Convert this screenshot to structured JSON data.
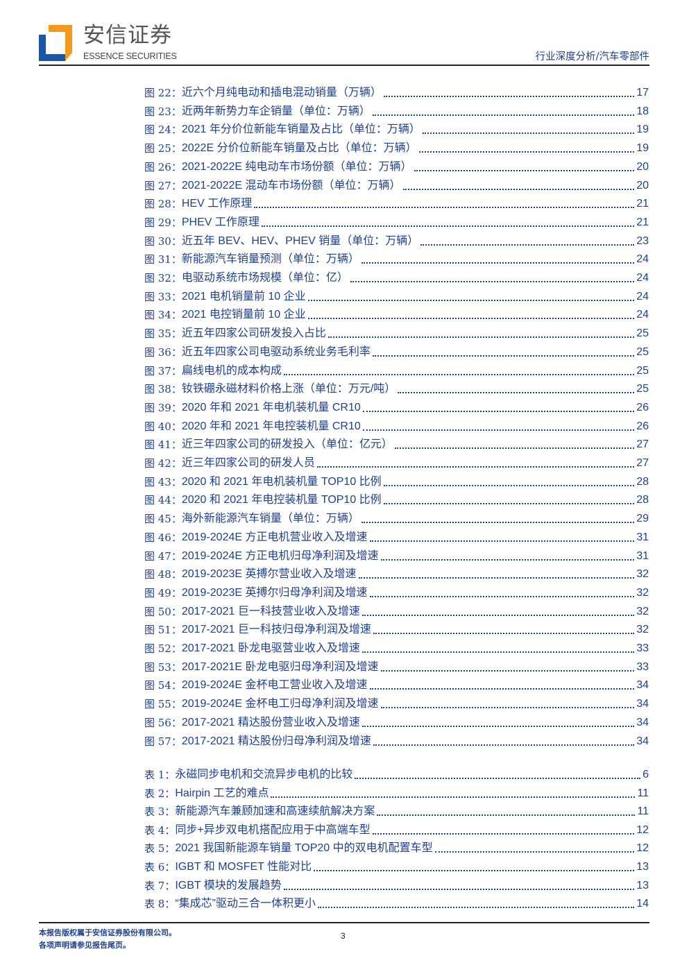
{
  "header": {
    "logo_cn": "安信证券",
    "logo_en": "ESSENCE SECURITIES",
    "category": "行业深度分析/汽车零部件",
    "brand_colors": {
      "orange": "#f39a1e",
      "blue": "#1a56a8"
    }
  },
  "text_color": "#1f3f8f",
  "figures": [
    {
      "label": "图 22：",
      "title": "近六个月纯电动和插电混动销量（万辆）",
      "page": "17"
    },
    {
      "label": "图 23：",
      "title": "近两年新势力车企销量（单位：万辆）",
      "page": "18"
    },
    {
      "label": "图 24：",
      "title": "2021 年分价位新能车销量及占比（单位：万辆）",
      "page": "19"
    },
    {
      "label": "图 25：",
      "title": "2022E 分价位新能车销量及占比（单位：万辆）",
      "page": "19"
    },
    {
      "label": "图 26：",
      "title": "2021-2022E 纯电动车市场份额（单位：万辆）",
      "page": "20"
    },
    {
      "label": "图 27：",
      "title": "2021-2022E 混动车市场份额（单位：万辆）",
      "page": "20"
    },
    {
      "label": "图 28：",
      "title": "HEV 工作原理",
      "page": "21"
    },
    {
      "label": "图 29：",
      "title": "PHEV 工作原理",
      "page": "21"
    },
    {
      "label": "图 30：",
      "title": "近五年 BEV、HEV、PHEV 销量（单位：万辆）",
      "page": "23"
    },
    {
      "label": "图 31：",
      "title": "新能源汽车销量预测（单位：万辆）",
      "page": "24"
    },
    {
      "label": "图 32：",
      "title": "电驱动系统市场规模（单位：亿）",
      "page": "24"
    },
    {
      "label": "图 33：",
      "title": "2021 电机销量前 10 企业",
      "page": "24"
    },
    {
      "label": "图 34：",
      "title": "2021 电控销量前 10 企业",
      "page": "24"
    },
    {
      "label": "图 35：",
      "title": "近五年四家公司研发投入占比",
      "page": "25"
    },
    {
      "label": "图 36：",
      "title": "近五年四家公司电驱动系统业务毛利率",
      "page": "25"
    },
    {
      "label": "图 37：",
      "title": "扁线电机的成本构成",
      "page": "25"
    },
    {
      "label": "图 38：",
      "title": "钕铁硼永磁材料价格上涨（单位：万元/吨）",
      "page": "25"
    },
    {
      "label": "图 39：",
      "title": "2020 年和 2021 年电机装机量 CR10",
      "page": "26"
    },
    {
      "label": "图 40：",
      "title": "2020 年和 2021 年电控装机量 CR10",
      "page": "26"
    },
    {
      "label": "图 41：",
      "title": "近三年四家公司的研发投入（单位：亿元）",
      "page": "27"
    },
    {
      "label": "图 42：",
      "title": "近三年四家公司的研发人员",
      "page": "27"
    },
    {
      "label": "图 43：",
      "title": "2020 和 2021 年电机装机量 TOP10 比例",
      "page": "28"
    },
    {
      "label": "图 44：",
      "title": "2020 和 2021 年电控装机量 TOP10 比例",
      "page": "28"
    },
    {
      "label": "图 45：",
      "title": "海外新能源汽车销量（单位：万辆）",
      "page": "29"
    },
    {
      "label": "图 46：",
      "title": "2019-2024E 方正电机营业收入及增速",
      "page": "31"
    },
    {
      "label": "图 47：",
      "title": "2019-2024E 方正电机归母净利润及增速",
      "page": "31"
    },
    {
      "label": "图 48：",
      "title": "2019-2023E 英搏尔营业收入及增速",
      "page": "32"
    },
    {
      "label": "图 49：",
      "title": "2019-2023E 英搏尔归母净利润及增速",
      "page": "32"
    },
    {
      "label": "图 50：",
      "title": "2017-2021 巨一科技营业收入及增速",
      "page": "32"
    },
    {
      "label": "图 51：",
      "title": "2017-2021 巨一科技归母净利润及增速",
      "page": "32"
    },
    {
      "label": "图 52：",
      "title": "2017-2021 卧龙电驱营业收入及增速",
      "page": "33"
    },
    {
      "label": "图 53：",
      "title": "2017-2021E 卧龙电驱归母净利润及增速",
      "page": "33"
    },
    {
      "label": "图 54：",
      "title": "2019-2024E 金杯电工营业收入及增速",
      "page": "34"
    },
    {
      "label": "图 55：",
      "title": "2019-2024E 金杯电工归母净利润及增速",
      "page": "34"
    },
    {
      "label": "图 56：",
      "title": "2017-2021 精达股份营业收入及增速",
      "page": "34"
    },
    {
      "label": "图 57：",
      "title": "2017-2021 精达股份归母净利润及增速",
      "page": "34"
    }
  ],
  "tables": [
    {
      "label": "表 1：",
      "title": "永磁同步电机和交流异步电机的比较",
      "page": "6"
    },
    {
      "label": "表 2：",
      "title": "Hairpin 工艺的难点",
      "page": "11"
    },
    {
      "label": "表 3：",
      "title": "新能源汽车兼顾加速和高速续航解决方案",
      "page": "11"
    },
    {
      "label": "表 4：",
      "title": "同步+异步双电机搭配应用于中高端车型",
      "page": "12"
    },
    {
      "label": "表 5：",
      "title": "2021 我国新能源车销量 TOP20 中的双电机配置车型",
      "page": "12"
    },
    {
      "label": "表 6：",
      "title": "IGBT 和 MOSFET 性能对比",
      "page": "13"
    },
    {
      "label": "表 7：",
      "title": "IGBT 模块的发展趋势",
      "page": "13"
    },
    {
      "label": "表 8：",
      "title": "“集成芯”驱动三合一体积更小",
      "page": "14"
    }
  ],
  "footer": {
    "copyright": "本报告版权属于安信证券股份有限公司。",
    "disclaimer": "各项声明请参见报告尾页。",
    "page_number": "3"
  }
}
